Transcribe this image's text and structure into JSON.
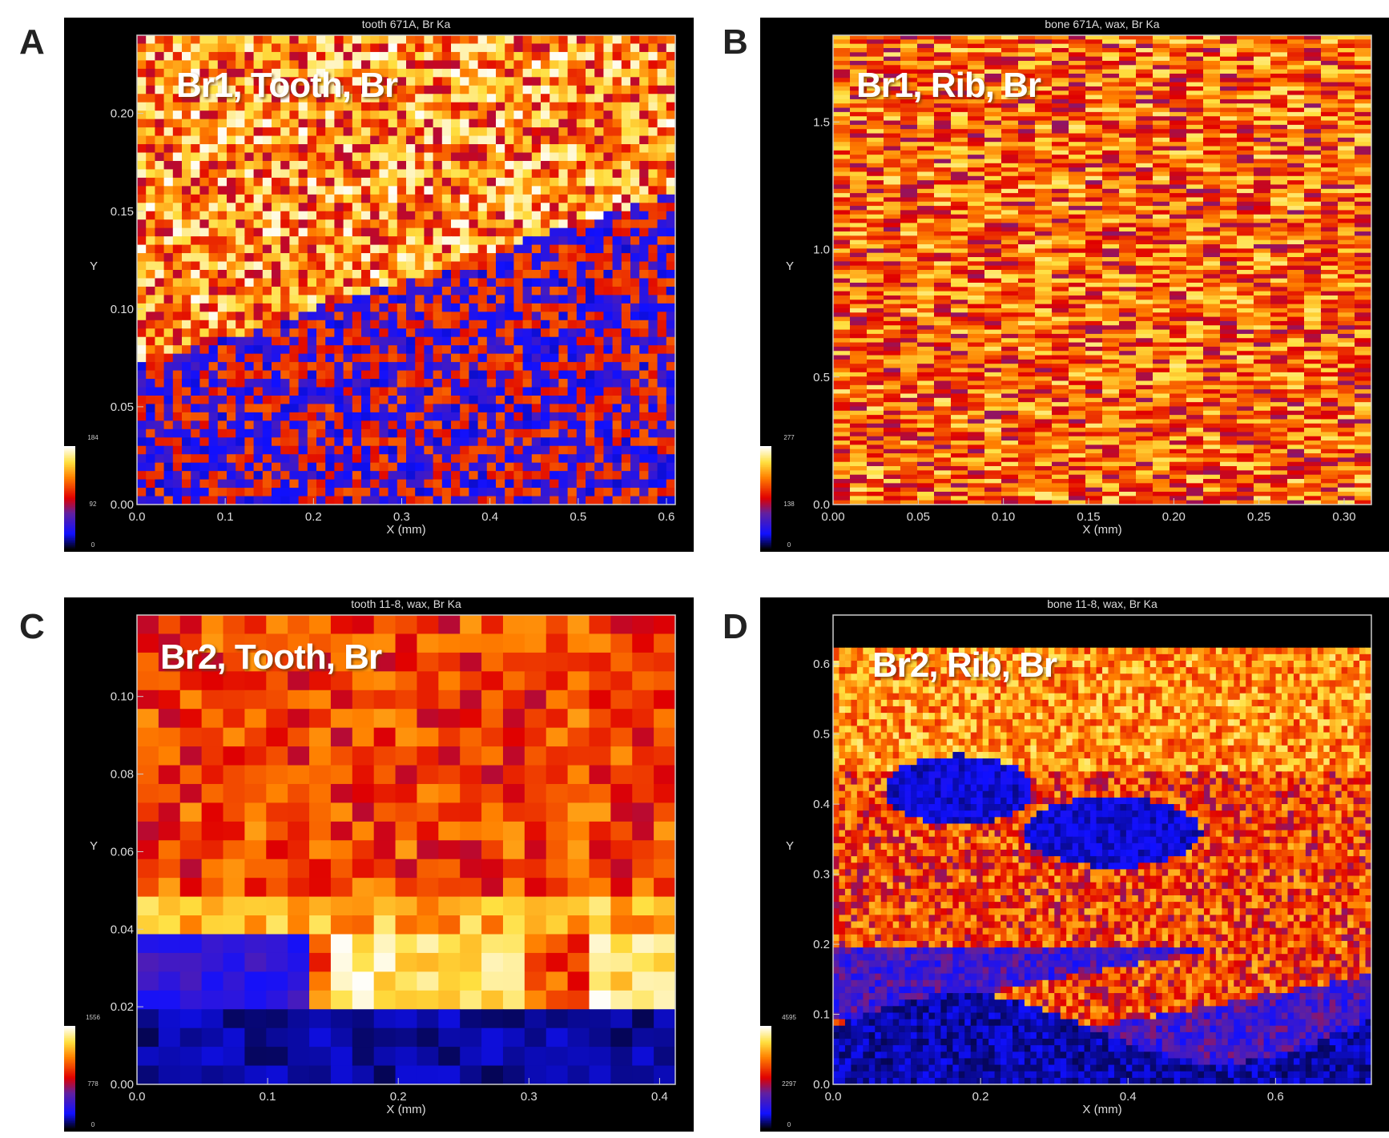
{
  "panel_letters": [
    "A",
    "B",
    "C",
    "D"
  ],
  "colormap": [
    "#000000",
    "#1010ff",
    "#6020a0",
    "#e00000",
    "#ff8000",
    "#ffe040",
    "#ffffff"
  ],
  "chart_data": [
    {
      "type": "heatmap",
      "title": "tooth 671A, Br Ka",
      "label": "Br1, Tooth, Br",
      "xlabel": "X (mm)",
      "ylabel": "Y",
      "xlim": [
        0,
        0.61
      ],
      "ylim": [
        0,
        0.24
      ],
      "xticks": [
        "0.0",
        "0.1",
        "0.2",
        "0.3",
        "0.4",
        "0.5",
        "0.6"
      ],
      "yticks": [
        "0.00",
        "0.05",
        "0.10",
        "0.15",
        "0.20"
      ],
      "colorbar": [
        "184",
        "92",
        "0"
      ]
    },
    {
      "type": "heatmap",
      "title": "bone 671A, wax, Br Ka",
      "label": "Br1, Rib, Br",
      "xlabel": "X (mm)",
      "ylabel": "Y",
      "xlim": [
        0,
        0.316
      ],
      "ylim": [
        0,
        1.84
      ],
      "xticks": [
        "0.00",
        "0.05",
        "0.10",
        "0.15",
        "0.20",
        "0.25",
        "0.30"
      ],
      "yticks": [
        "0.0",
        "0.5",
        "1.0",
        "1.5"
      ],
      "colorbar": [
        "277",
        "138",
        "0"
      ]
    },
    {
      "type": "heatmap",
      "title": "tooth 11-8, wax, Br Ka",
      "label": "Br2, Tooth, Br",
      "xlabel": "X (mm)",
      "ylabel": "Y",
      "xlim": [
        0,
        0.412
      ],
      "ylim": [
        0,
        0.121
      ],
      "xticks": [
        "0.0",
        "0.1",
        "0.2",
        "0.3",
        "0.4"
      ],
      "yticks": [
        "0.00",
        "0.02",
        "0.04",
        "0.06",
        "0.08",
        "0.10"
      ],
      "colorbar": [
        "1556",
        "778",
        "0"
      ]
    },
    {
      "type": "heatmap",
      "title": "bone 11-8, wax, Br Ka",
      "label": "Br2, Rib, Br",
      "xlabel": "X (mm)",
      "ylabel": "Y",
      "xlim": [
        0,
        0.73
      ],
      "ylim": [
        0,
        0.67
      ],
      "xticks": [
        "0.0",
        "0.2",
        "0.4",
        "0.6"
      ],
      "yticks": [
        "0.0",
        "0.1",
        "0.2",
        "0.3",
        "0.4",
        "0.5",
        "0.6"
      ],
      "colorbar": [
        "4595",
        "2297",
        "0"
      ]
    }
  ]
}
